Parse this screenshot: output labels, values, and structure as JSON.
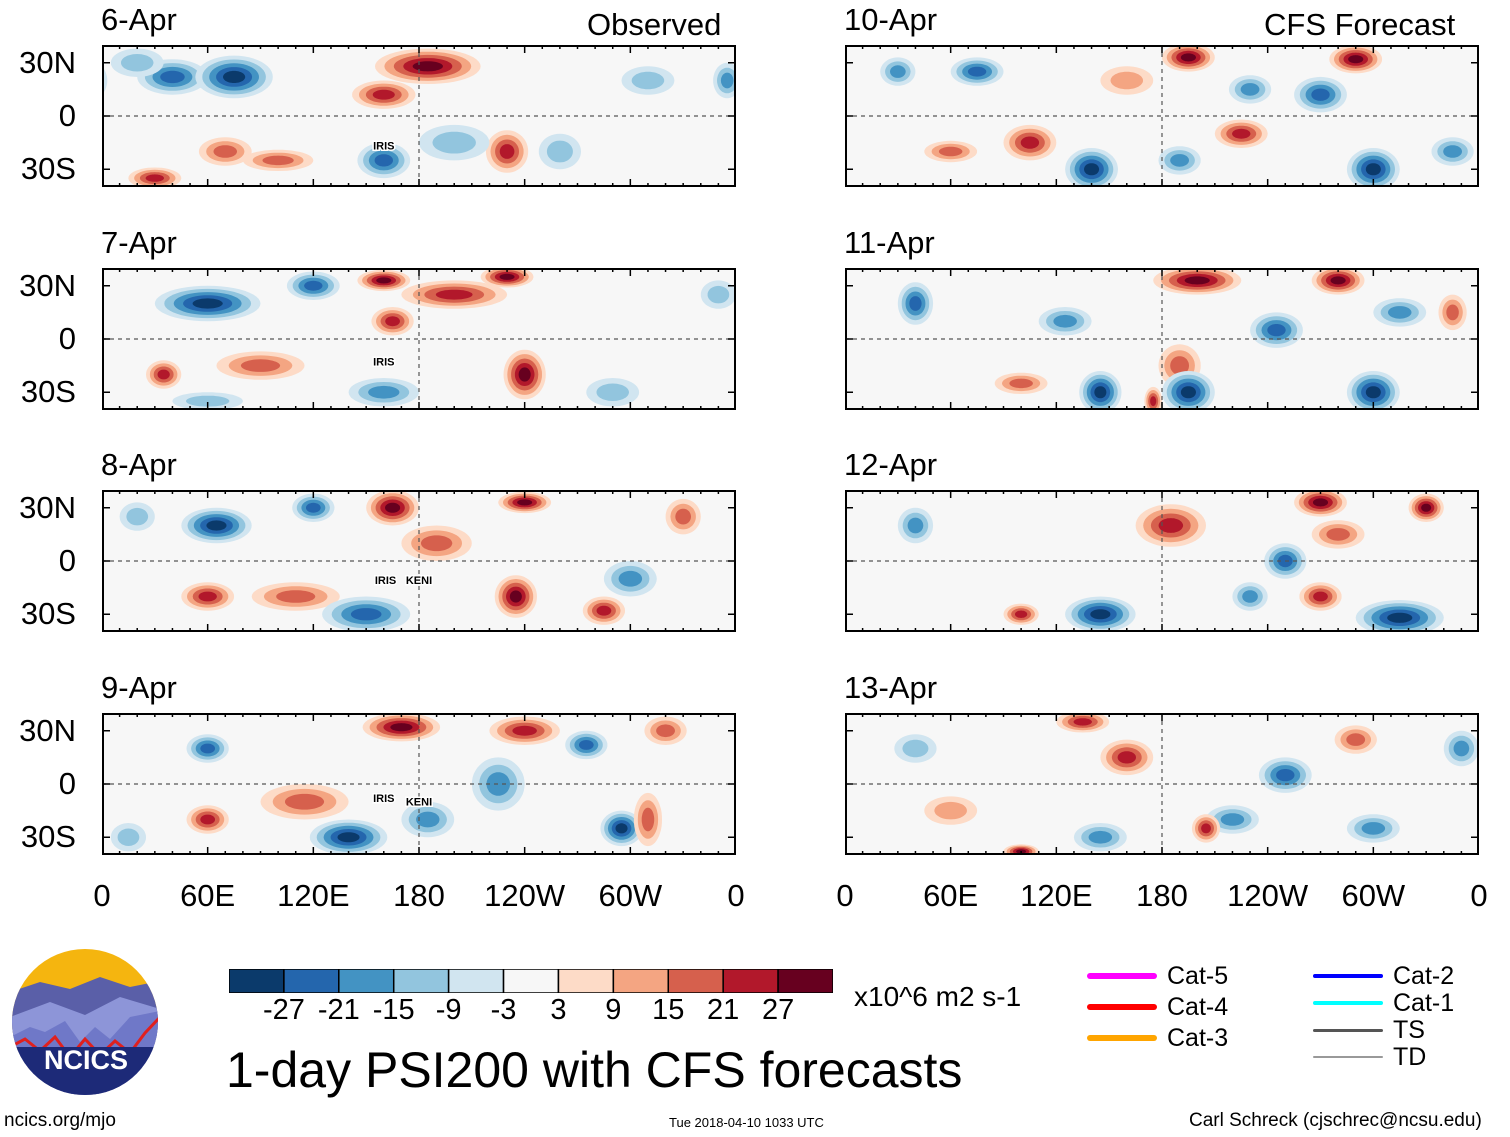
{
  "title": "1-day PSI200 with CFS forecasts",
  "headers": {
    "observed": "Observed",
    "forecast": "CFS Forecast"
  },
  "lat_labels": [
    "30N",
    "0",
    "30S"
  ],
  "lon_labels": [
    "0",
    "60E",
    "120E",
    "180",
    "120W",
    "60W",
    "0"
  ],
  "panels": [
    {
      "date": "6-Apr",
      "column": "observed",
      "storms": [
        {
          "name": "IRIS",
          "lon": 160,
          "lat": -19
        }
      ],
      "features": [
        [
          40,
          22,
          -21,
          20,
          10
        ],
        [
          75,
          22,
          -27,
          22,
          12
        ],
        [
          20,
          30,
          -9,
          15,
          8
        ],
        [
          185,
          28,
          27,
          30,
          10
        ],
        [
          160,
          12,
          21,
          18,
          8
        ],
        [
          230,
          -20,
          21,
          12,
          12
        ],
        [
          160,
          -25,
          -21,
          15,
          10
        ],
        [
          30,
          -35,
          21,
          15,
          6
        ],
        [
          70,
          -20,
          15,
          15,
          8
        ],
        [
          260,
          -20,
          -9,
          12,
          10
        ],
        [
          310,
          20,
          -9,
          15,
          8
        ],
        [
          355,
          20,
          -15,
          8,
          10
        ],
        [
          200,
          -15,
          -9,
          20,
          10
        ],
        [
          100,
          -25,
          15,
          20,
          6
        ]
      ]
    },
    {
      "date": "7-Apr",
      "column": "observed",
      "storms": [
        {
          "name": "IRIS",
          "lon": 160,
          "lat": -15
        }
      ],
      "features": [
        [
          60,
          20,
          -27,
          30,
          10
        ],
        [
          120,
          30,
          -21,
          15,
          8
        ],
        [
          160,
          33,
          27,
          15,
          6
        ],
        [
          200,
          25,
          21,
          30,
          8
        ],
        [
          230,
          35,
          27,
          15,
          6
        ],
        [
          165,
          10,
          21,
          12,
          8
        ],
        [
          240,
          -20,
          27,
          12,
          14
        ],
        [
          35,
          -20,
          21,
          10,
          8
        ],
        [
          90,
          -15,
          15,
          25,
          8
        ],
        [
          160,
          -30,
          -15,
          20,
          8
        ],
        [
          350,
          25,
          -9,
          10,
          8
        ],
        [
          290,
          -30,
          -9,
          15,
          8
        ],
        [
          60,
          -35,
          -9,
          20,
          5
        ]
      ]
    },
    {
      "date": "8-Apr",
      "column": "observed",
      "storms": [
        {
          "name": "IRIS",
          "lon": 161,
          "lat": -13
        },
        {
          "name": "KENI",
          "lon": 180,
          "lat": -13
        }
      ],
      "features": [
        [
          65,
          20,
          -27,
          20,
          10
        ],
        [
          120,
          30,
          -21,
          12,
          8
        ],
        [
          165,
          30,
          27,
          15,
          10
        ],
        [
          240,
          33,
          27,
          15,
          6
        ],
        [
          190,
          10,
          15,
          20,
          10
        ],
        [
          235,
          -20,
          27,
          12,
          12
        ],
        [
          60,
          -20,
          21,
          15,
          8
        ],
        [
          110,
          -20,
          15,
          25,
          8
        ],
        [
          150,
          -30,
          -21,
          25,
          10
        ],
        [
          285,
          -28,
          21,
          12,
          8
        ],
        [
          300,
          -10,
          -15,
          15,
          10
        ],
        [
          330,
          25,
          15,
          10,
          10
        ],
        [
          20,
          25,
          -9,
          10,
          8
        ]
      ]
    },
    {
      "date": "9-Apr",
      "column": "observed",
      "storms": [
        {
          "name": "IRIS",
          "lon": 160,
          "lat": -10
        },
        {
          "name": "KENI",
          "lon": 180,
          "lat": -12
        }
      ],
      "features": [
        [
          60,
          20,
          -21,
          12,
          8
        ],
        [
          170,
          32,
          27,
          22,
          8
        ],
        [
          240,
          30,
          21,
          20,
          8
        ],
        [
          275,
          22,
          -21,
          12,
          8
        ],
        [
          225,
          0,
          -15,
          15,
          15
        ],
        [
          60,
          -20,
          21,
          12,
          8
        ],
        [
          140,
          -30,
          -27,
          22,
          10
        ],
        [
          185,
          -20,
          -15,
          15,
          10
        ],
        [
          295,
          -25,
          -27,
          12,
          10
        ],
        [
          115,
          -10,
          15,
          25,
          10
        ],
        [
          320,
          30,
          15,
          12,
          8
        ],
        [
          310,
          -20,
          15,
          8,
          15
        ],
        [
          15,
          -30,
          -9,
          10,
          8
        ]
      ]
    },
    {
      "date": "10-Apr",
      "column": "forecast",
      "storms": [],
      "features": [
        [
          195,
          33,
          27,
          15,
          8
        ],
        [
          290,
          32,
          27,
          15,
          8
        ],
        [
          270,
          12,
          -21,
          15,
          10
        ],
        [
          230,
          15,
          -15,
          12,
          8
        ],
        [
          75,
          25,
          -21,
          15,
          8
        ],
        [
          30,
          25,
          -15,
          10,
          8
        ],
        [
          140,
          -30,
          -27,
          15,
          12
        ],
        [
          300,
          -30,
          -27,
          15,
          12
        ],
        [
          105,
          -15,
          21,
          15,
          10
        ],
        [
          225,
          -10,
          21,
          15,
          8
        ],
        [
          345,
          -20,
          -15,
          12,
          8
        ],
        [
          190,
          -25,
          -15,
          12,
          8
        ],
        [
          60,
          -20,
          15,
          15,
          6
        ],
        [
          160,
          20,
          9,
          15,
          8
        ]
      ]
    },
    {
      "date": "11-Apr",
      "column": "forecast",
      "storms": [],
      "features": [
        [
          200,
          33,
          27,
          25,
          8
        ],
        [
          280,
          33,
          27,
          15,
          8
        ],
        [
          40,
          20,
          -21,
          10,
          12
        ],
        [
          125,
          10,
          -15,
          15,
          8
        ],
        [
          245,
          5,
          -21,
          15,
          10
        ],
        [
          190,
          -15,
          15,
          12,
          12
        ],
        [
          145,
          -30,
          -27,
          12,
          12
        ],
        [
          195,
          -30,
          -27,
          15,
          12
        ],
        [
          300,
          -30,
          -27,
          15,
          12
        ],
        [
          175,
          -35,
          21,
          5,
          8
        ],
        [
          315,
          15,
          -15,
          15,
          8
        ],
        [
          100,
          -25,
          15,
          15,
          6
        ],
        [
          345,
          15,
          15,
          8,
          10
        ]
      ]
    },
    {
      "date": "12-Apr",
      "column": "forecast",
      "storms": [],
      "features": [
        [
          185,
          20,
          21,
          20,
          12
        ],
        [
          270,
          33,
          27,
          15,
          8
        ],
        [
          330,
          30,
          27,
          10,
          8
        ],
        [
          250,
          0,
          -21,
          12,
          10
        ],
        [
          230,
          -20,
          -15,
          10,
          8
        ],
        [
          145,
          -30,
          -27,
          20,
          10
        ],
        [
          315,
          -32,
          -27,
          25,
          10
        ],
        [
          40,
          20,
          -15,
          10,
          10
        ],
        [
          100,
          -30,
          21,
          10,
          6
        ],
        [
          270,
          -20,
          21,
          12,
          8
        ],
        [
          280,
          15,
          15,
          15,
          8
        ]
      ]
    },
    {
      "date": "13-Apr",
      "column": "forecast",
      "storms": [],
      "features": [
        [
          135,
          35,
          21,
          15,
          6
        ],
        [
          160,
          15,
          21,
          15,
          10
        ],
        [
          250,
          5,
          -21,
          15,
          10
        ],
        [
          220,
          -20,
          -15,
          15,
          8
        ],
        [
          205,
          -25,
          21,
          8,
          8
        ],
        [
          145,
          -30,
          -15,
          15,
          8
        ],
        [
          300,
          -25,
          -15,
          15,
          8
        ],
        [
          290,
          25,
          15,
          12,
          8
        ],
        [
          350,
          20,
          -15,
          10,
          10
        ],
        [
          40,
          20,
          -9,
          12,
          8
        ],
        [
          60,
          -15,
          9,
          15,
          8
        ],
        [
          100,
          -38,
          27,
          10,
          4
        ]
      ]
    }
  ],
  "colorbar": {
    "colors": [
      "#0b3a6b",
      "#2466ad",
      "#4393c3",
      "#92c5de",
      "#d1e5f0",
      "#f7f7f7",
      "#fddbc7",
      "#f4a582",
      "#d6604d",
      "#b2182b",
      "#67001f"
    ],
    "labels": [
      "-27",
      "-21",
      "-15",
      "-9",
      "-3",
      "3",
      "9",
      "15",
      "21",
      "27"
    ],
    "units": "x10^6 m2 s-1"
  },
  "legend": [
    {
      "label": "Cat-5",
      "color": "#ff00ff",
      "width": 6
    },
    {
      "label": "Cat-4",
      "color": "#ff0000",
      "width": 6
    },
    {
      "label": "Cat-3",
      "color": "#ffa500",
      "width": 6
    },
    {
      "label": "Cat-2",
      "color": "#0000ff",
      "width": 4
    },
    {
      "label": "Cat-1",
      "color": "#00ffff",
      "width": 4
    },
    {
      "label": "TS",
      "color": "#555555",
      "width": 3
    },
    {
      "label": "TD",
      "color": "#999999",
      "width": 2
    }
  ],
  "logo": {
    "text": "NCICS"
  },
  "footer": {
    "url": "ncics.org/mjo",
    "timestamp": "Tue 2018-04-10 1033 UTC",
    "author": "Carl Schreck (cjschrec@ncsu.edu)"
  }
}
